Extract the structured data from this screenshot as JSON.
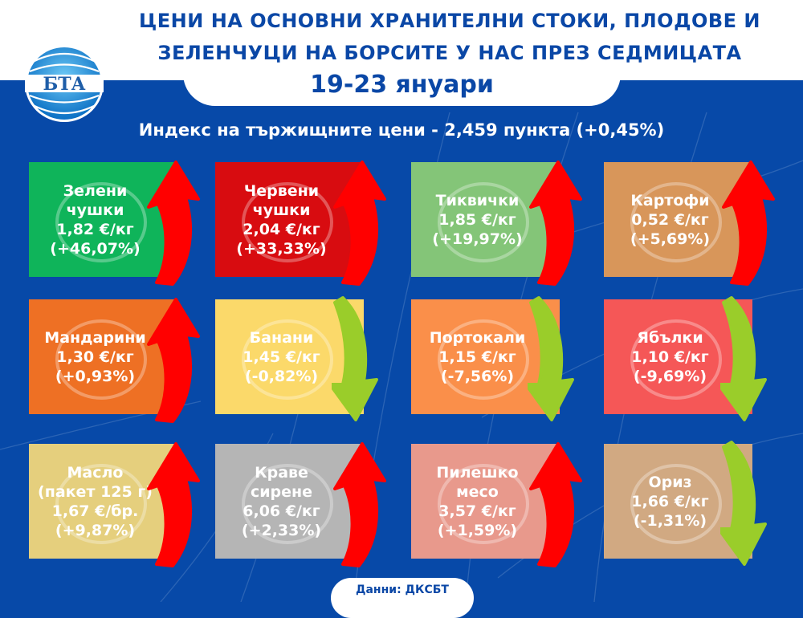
{
  "header": {
    "title_line1": "ЦЕНИ НА ОСНОВНИ ХРАНИТЕЛНИ СТОКИ, ПЛОДОВЕ И",
    "title_line2": "ЗЕЛЕНЧУЦИ НА БОРСИТЕ У НАС ПРЕЗ СЕДМИЦАТА",
    "date": "19-23 януари",
    "logo_text": "БТА"
  },
  "index": {
    "text": "Индекс на тържищните цени - 2,459 пункта (+0,45%)"
  },
  "colors": {
    "background": "#0749a8",
    "title": "#0a47a6",
    "arrow_up": "#ff0000",
    "arrow_down": "#9acd2a"
  },
  "tiles": [
    {
      "name": "Зелени чушки",
      "line1": "Зелени",
      "line2": "чушки",
      "price": "1,82 €/кг",
      "change": "(+46,07%)",
      "direction": "up",
      "color": "#0fb45a",
      "icon": "pepper-icon"
    },
    {
      "name": "Червени чушки",
      "line1": "Червени",
      "line2": "чушки",
      "price": "2,04 €/кг",
      "change": "(+33,33%)",
      "direction": "up",
      "color": "#d80c10",
      "icon": "pepper-icon"
    },
    {
      "name": "Тиквички",
      "line1": "Тиквички",
      "line2": "",
      "price": "1,85 €/кг",
      "change": "(+19,97%)",
      "direction": "up",
      "color": "#84c578",
      "icon": "zucchini-icon"
    },
    {
      "name": "Картофи",
      "line1": "Картофи",
      "line2": "",
      "price": "0,52 €/кг",
      "change": "(+5,69%)",
      "direction": "up",
      "color": "#d8965a",
      "icon": "potato-icon"
    },
    {
      "name": "Мандарини",
      "line1": "Мандарини",
      "line2": "",
      "price": "1,30 €/кг",
      "change": "(+0,93%)",
      "direction": "up",
      "color": "#ee7024",
      "icon": "tangerine-icon"
    },
    {
      "name": "Банани",
      "line1": "Банани",
      "line2": "",
      "price": "1,45 €/кг",
      "change": "(-0,82%)",
      "direction": "down",
      "color": "#fbd96a",
      "icon": "banana-icon"
    },
    {
      "name": "Портокали",
      "line1": "Портокали",
      "line2": "",
      "price": "1,15 €/кг",
      "change": "(-7,56%)",
      "direction": "down",
      "color": "#fa8f4a",
      "icon": "orange-icon"
    },
    {
      "name": "Ябълки",
      "line1": "Ябълки",
      "line2": "",
      "price": "1,10 €/кг",
      "change": "(-9,69%)",
      "direction": "down",
      "color": "#f55757",
      "icon": "apple-icon"
    },
    {
      "name": "Масло (пакет 125 г)",
      "line1": "Масло",
      "line2": "(пакет 125 г)",
      "price": "1,67 €/бр.",
      "change": "(+9,87%)",
      "direction": "up",
      "color": "#e5cf7d",
      "icon": "butter-icon"
    },
    {
      "name": "Краве сирене",
      "line1": "Краве",
      "line2": "сирене",
      "price": "6,06 €/кг",
      "change": "(+2,33%)",
      "direction": "up",
      "color": "#b5b5b5",
      "icon": "cheese-icon"
    },
    {
      "name": "Пилешко месо",
      "line1": "Пилешко",
      "line2": "месо",
      "price": "3,57 €/кг",
      "change": "(+1,59%)",
      "direction": "up",
      "color": "#e8998c",
      "icon": "chicken-icon"
    },
    {
      "name": "Ориз",
      "line1": "Ориз",
      "line2": "",
      "price": "1,66 €/кг",
      "change": "(-1,31%)",
      "direction": "down",
      "color": "#d1a982",
      "icon": "rice-icon"
    }
  ],
  "footer": {
    "source": "Данни: ДКСБТ"
  }
}
